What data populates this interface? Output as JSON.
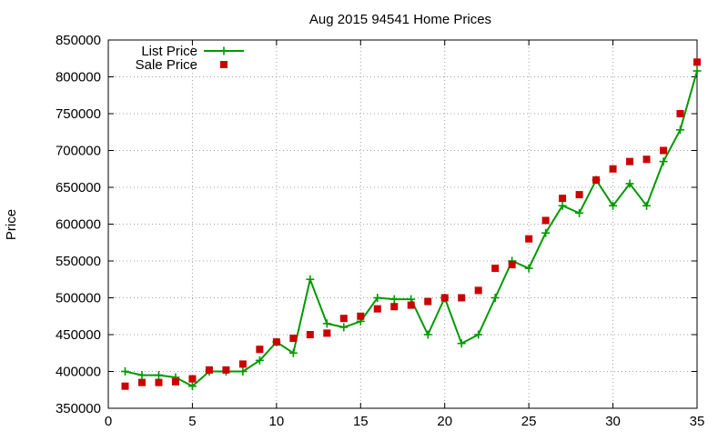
{
  "chart_data": {
    "type": "line",
    "title": "Aug 2015 94541 Home Prices",
    "xlabel": "",
    "ylabel": "Price",
    "xlim": [
      0,
      35
    ],
    "ylim": [
      350000,
      850000
    ],
    "x_ticks": [
      0,
      5,
      10,
      15,
      20,
      25,
      30,
      35
    ],
    "y_ticks": [
      350000,
      400000,
      450000,
      500000,
      550000,
      600000,
      650000,
      700000,
      750000,
      800000,
      850000
    ],
    "x_tick_labels": [
      "0",
      "5",
      "10",
      "15",
      "20",
      "25",
      "30",
      "35"
    ],
    "y_tick_labels": [
      "350000",
      "400000",
      "450000",
      "500000",
      "550000",
      "600000",
      "650000",
      "700000",
      "750000",
      "800000",
      "850000"
    ],
    "grid": true,
    "legend_position": "top-left",
    "series": [
      {
        "name": "List Price",
        "style": "line-with-plus-markers",
        "color": "#009900",
        "x": [
          1,
          2,
          3,
          4,
          5,
          6,
          7,
          8,
          9,
          10,
          11,
          12,
          13,
          14,
          15,
          16,
          17,
          18,
          19,
          20,
          21,
          22,
          23,
          24,
          25,
          26,
          27,
          28,
          29,
          30,
          31,
          32,
          33,
          34,
          35
        ],
        "values": [
          400000,
          395000,
          395000,
          392000,
          380000,
          400000,
          400000,
          400000,
          415000,
          440000,
          425000,
          525000,
          465000,
          460000,
          468000,
          500000,
          498000,
          498000,
          450000,
          500000,
          438000,
          450000,
          500000,
          550000,
          540000,
          588000,
          625000,
          615000,
          660000,
          625000,
          655000,
          625000,
          685000,
          728000,
          808000
        ]
      },
      {
        "name": "Sale Price",
        "style": "square-markers",
        "color": "#cc0000",
        "x": [
          1,
          2,
          3,
          4,
          5,
          6,
          7,
          8,
          9,
          10,
          11,
          12,
          13,
          14,
          15,
          16,
          17,
          18,
          19,
          20,
          21,
          22,
          23,
          24,
          25,
          26,
          27,
          28,
          29,
          30,
          31,
          32,
          33,
          34,
          35
        ],
        "values": [
          380000,
          385000,
          385000,
          386000,
          390000,
          402000,
          402000,
          410000,
          430000,
          440000,
          445000,
          450000,
          452000,
          472000,
          475000,
          485000,
          488000,
          490000,
          495000,
          500000,
          500000,
          510000,
          540000,
          545000,
          580000,
          605000,
          635000,
          640000,
          660000,
          675000,
          685000,
          688000,
          700000,
          750000,
          820000
        ]
      }
    ]
  }
}
